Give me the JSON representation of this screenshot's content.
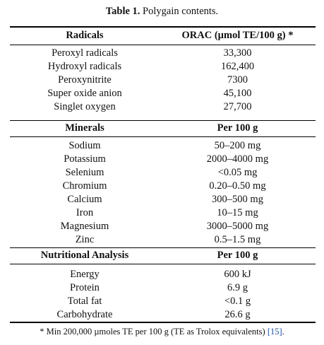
{
  "caption": {
    "label": "Table 1.",
    "text": "Polygain contents."
  },
  "sections": [
    {
      "header": [
        "Radicals",
        "ORAC (µmol TE/100 g) *"
      ],
      "rows": [
        [
          "Peroxyl radicals",
          "33,300"
        ],
        [
          "Hydroxyl radicals",
          "162,400"
        ],
        [
          "Peroxynitrite",
          "7300"
        ],
        [
          "Super oxide anion",
          "45,100"
        ],
        [
          "Singlet oxygen",
          "27,700"
        ]
      ]
    },
    {
      "header": [
        "Minerals",
        "Per 100 g"
      ],
      "rows": [
        [
          "Sodium",
          "50–200 mg"
        ],
        [
          "Potassium",
          "2000–4000 mg"
        ],
        [
          "Selenium",
          "<0.05 mg"
        ],
        [
          "Chromium",
          "0.20–0.50 mg"
        ],
        [
          "Calcium",
          "300–500 mg"
        ],
        [
          "Iron",
          "10–15 mg"
        ],
        [
          "Magnesium",
          "3000–5000 mg"
        ],
        [
          "Zinc",
          "0.5–1.5 mg"
        ]
      ]
    },
    {
      "header": [
        "Nutritional Analysis",
        "Per 100 g"
      ],
      "rows": [
        [
          "Energy",
          "600 kJ"
        ],
        [
          "Protein",
          "6.9 g"
        ],
        [
          "Total fat",
          "<0.1 g"
        ],
        [
          "Carbohydrate",
          "26.6 g"
        ]
      ]
    }
  ],
  "footnote": {
    "text": "* Min 200,000 µmoles TE per 100 g (TE as Trolox equivalents) ",
    "ref": "[15]",
    "end": "."
  }
}
